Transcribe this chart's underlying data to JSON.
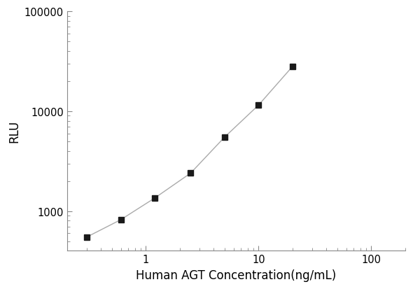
{
  "x": [
    0.3,
    0.6,
    1.2,
    2.5,
    5.0,
    10.0,
    20.0
  ],
  "y": [
    550,
    820,
    1350,
    2400,
    5500,
    11500,
    28000
  ],
  "xlabel": "Human AGT Concentration(ng/mL)",
  "ylabel": "RLU",
  "xlim": [
    0.2,
    200
  ],
  "ylim": [
    400,
    100000
  ],
  "xticks": [
    1,
    10,
    100
  ],
  "xtick_labels": [
    "1",
    "10",
    "100"
  ],
  "yticks": [
    1000,
    10000,
    100000
  ],
  "ytick_labels": [
    "1000",
    "10000",
    "100000"
  ],
  "line_color": "#aaaaaa",
  "marker_color": "#1a1a1a",
  "marker": "s",
  "marker_size": 6,
  "background_color": "#ffffff",
  "spine_color": "#888888",
  "label_fontsize": 12,
  "tick_fontsize": 10.5,
  "figsize": [
    5.9,
    4.14
  ],
  "dpi": 100
}
